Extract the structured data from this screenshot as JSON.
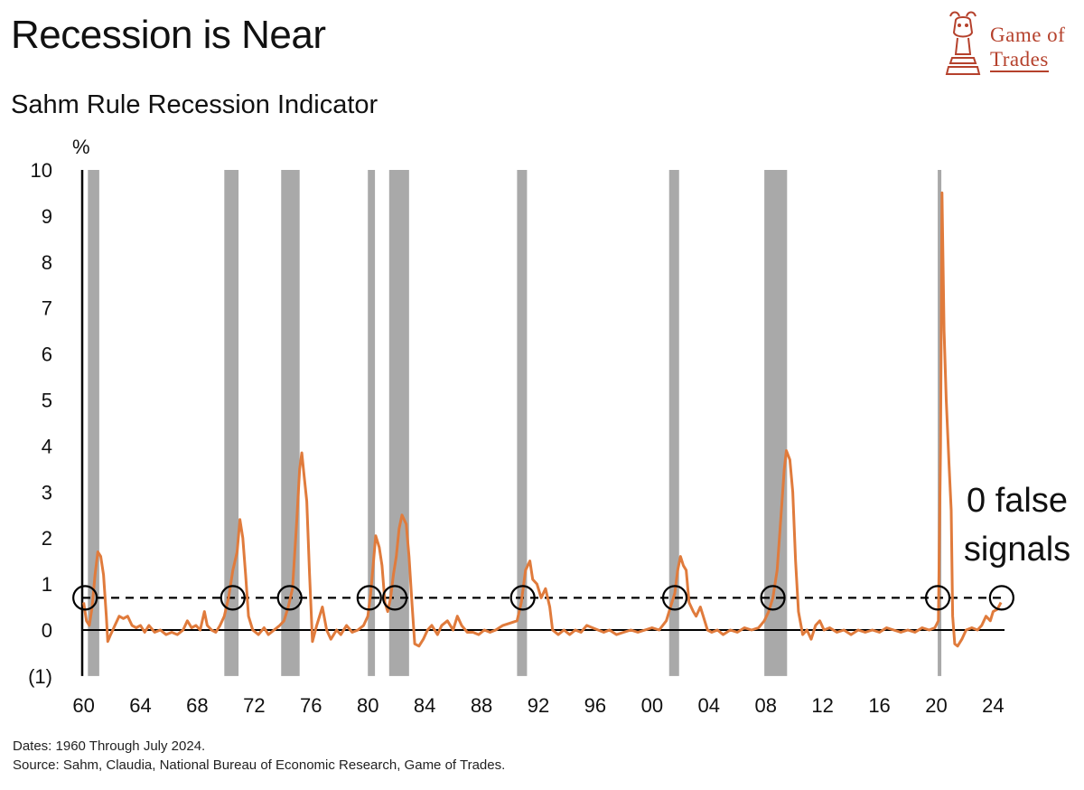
{
  "header": {
    "title": "Recession is Near",
    "subtitle": "Sahm Rule Recession Indicator"
  },
  "logo": {
    "line1": "Game of",
    "line2": "Trades",
    "color": "#b5412c"
  },
  "footnote": {
    "dates": "Dates: 1960 Through July 2024.",
    "source": "Source: Sahm, Claudia, National Bureau of Economic Research, Game of Trades."
  },
  "chart_data": {
    "type": "line",
    "title": "Sahm Rule Recession Indicator",
    "ylabel": "%",
    "ylim": [
      -1,
      10
    ],
    "xlim": [
      1959.9,
      2024.8
    ],
    "yticks": [
      {
        "value": 10,
        "label": "10"
      },
      {
        "value": 9,
        "label": "9"
      },
      {
        "value": 8,
        "label": "8"
      },
      {
        "value": 7,
        "label": "7"
      },
      {
        "value": 6,
        "label": "6"
      },
      {
        "value": 5,
        "label": "5"
      },
      {
        "value": 4,
        "label": "4"
      },
      {
        "value": 3,
        "label": "3"
      },
      {
        "value": 2,
        "label": "2"
      },
      {
        "value": 1,
        "label": "1"
      },
      {
        "value": 0,
        "label": "0"
      },
      {
        "value": -1,
        "label": "(1)"
      }
    ],
    "xticks": [
      {
        "value": 1960,
        "label": "60"
      },
      {
        "value": 1964,
        "label": "64"
      },
      {
        "value": 1968,
        "label": "68"
      },
      {
        "value": 1972,
        "label": "72"
      },
      {
        "value": 1976,
        "label": "76"
      },
      {
        "value": 1980,
        "label": "80"
      },
      {
        "value": 1984,
        "label": "84"
      },
      {
        "value": 1988,
        "label": "88"
      },
      {
        "value": 1992,
        "label": "92"
      },
      {
        "value": 1996,
        "label": "96"
      },
      {
        "value": 2000,
        "label": "00"
      },
      {
        "value": 2004,
        "label": "04"
      },
      {
        "value": 2008,
        "label": "08"
      },
      {
        "value": 2012,
        "label": "12"
      },
      {
        "value": 2016,
        "label": "16"
      },
      {
        "value": 2020,
        "label": "20"
      },
      {
        "value": 2024,
        "label": "24"
      }
    ],
    "threshold": 0.7,
    "recessions": [
      [
        1960.3,
        1961.1
      ],
      [
        1969.9,
        1970.9
      ],
      [
        1973.9,
        1975.2
      ],
      [
        1980.0,
        1980.5
      ],
      [
        1981.5,
        1982.9
      ],
      [
        1990.5,
        1991.2
      ],
      [
        2001.2,
        2001.9
      ],
      [
        2007.9,
        2009.5
      ],
      [
        2020.1,
        2020.3
      ]
    ],
    "signals": [
      1960.1,
      1970.5,
      1974.5,
      1980.1,
      1981.9,
      1990.9,
      2001.6,
      2008.5,
      2020.1,
      2024.6
    ],
    "annotation": {
      "line1": "0 false",
      "line2": "signals"
    },
    "series": [
      {
        "name": "Sahm Rule Recession Indicator",
        "color": "#e07b3c",
        "points": [
          [
            1960.0,
            0.6
          ],
          [
            1960.2,
            0.2
          ],
          [
            1960.4,
            0.1
          ],
          [
            1960.6,
            0.5
          ],
          [
            1960.8,
            1.2
          ],
          [
            1961.0,
            1.7
          ],
          [
            1961.2,
            1.6
          ],
          [
            1961.4,
            1.2
          ],
          [
            1961.6,
            0.3
          ],
          [
            1961.7,
            -0.25
          ],
          [
            1961.9,
            -0.1
          ],
          [
            1962.2,
            0.1
          ],
          [
            1962.5,
            0.3
          ],
          [
            1962.8,
            0.25
          ],
          [
            1963.1,
            0.3
          ],
          [
            1963.4,
            0.1
          ],
          [
            1963.7,
            0.05
          ],
          [
            1964.0,
            0.1
          ],
          [
            1964.3,
            -0.05
          ],
          [
            1964.6,
            0.1
          ],
          [
            1965.0,
            -0.05
          ],
          [
            1965.4,
            0.0
          ],
          [
            1965.8,
            -0.1
          ],
          [
            1966.2,
            -0.05
          ],
          [
            1966.6,
            -0.1
          ],
          [
            1967.0,
            0.0
          ],
          [
            1967.3,
            0.2
          ],
          [
            1967.6,
            0.05
          ],
          [
            1967.9,
            0.1
          ],
          [
            1968.2,
            0.0
          ],
          [
            1968.5,
            0.4
          ],
          [
            1968.7,
            0.1
          ],
          [
            1969.0,
            0.0
          ],
          [
            1969.3,
            -0.05
          ],
          [
            1969.6,
            0.1
          ],
          [
            1969.9,
            0.3
          ],
          [
            1970.2,
            0.7
          ],
          [
            1970.5,
            1.3
          ],
          [
            1970.8,
            1.7
          ],
          [
            1971.0,
            2.4
          ],
          [
            1971.2,
            2.0
          ],
          [
            1971.4,
            1.2
          ],
          [
            1971.6,
            0.3
          ],
          [
            1971.9,
            0.0
          ],
          [
            1972.3,
            -0.1
          ],
          [
            1972.7,
            0.05
          ],
          [
            1973.0,
            -0.1
          ],
          [
            1973.4,
            0.0
          ],
          [
            1973.8,
            0.1
          ],
          [
            1974.1,
            0.2
          ],
          [
            1974.4,
            0.5
          ],
          [
            1974.7,
            0.9
          ],
          [
            1975.0,
            2.4
          ],
          [
            1975.2,
            3.5
          ],
          [
            1975.35,
            3.85
          ],
          [
            1975.5,
            3.4
          ],
          [
            1975.7,
            2.8
          ],
          [
            1975.9,
            1.2
          ],
          [
            1976.1,
            -0.25
          ],
          [
            1976.4,
            0.1
          ],
          [
            1976.8,
            0.5
          ],
          [
            1977.1,
            0.0
          ],
          [
            1977.4,
            -0.2
          ],
          [
            1977.8,
            0.0
          ],
          [
            1978.1,
            -0.1
          ],
          [
            1978.5,
            0.1
          ],
          [
            1978.9,
            -0.05
          ],
          [
            1979.3,
            0.0
          ],
          [
            1979.7,
            0.1
          ],
          [
            1980.0,
            0.3
          ],
          [
            1980.2,
            0.8
          ],
          [
            1980.4,
            1.5
          ],
          [
            1980.55,
            2.05
          ],
          [
            1980.8,
            1.8
          ],
          [
            1981.0,
            1.4
          ],
          [
            1981.2,
            0.6
          ],
          [
            1981.4,
            0.4
          ],
          [
            1981.6,
            0.7
          ],
          [
            1981.8,
            1.2
          ],
          [
            1982.0,
            1.6
          ],
          [
            1982.2,
            2.2
          ],
          [
            1982.4,
            2.5
          ],
          [
            1982.7,
            2.3
          ],
          [
            1982.9,
            1.6
          ],
          [
            1983.1,
            0.6
          ],
          [
            1983.3,
            -0.3
          ],
          [
            1983.6,
            -0.35
          ],
          [
            1983.9,
            -0.2
          ],
          [
            1984.2,
            0.0
          ],
          [
            1984.5,
            0.1
          ],
          [
            1984.9,
            -0.1
          ],
          [
            1985.2,
            0.1
          ],
          [
            1985.6,
            0.2
          ],
          [
            1986.0,
            0.0
          ],
          [
            1986.3,
            0.3
          ],
          [
            1986.6,
            0.1
          ],
          [
            1987.0,
            -0.05
          ],
          [
            1987.4,
            -0.05
          ],
          [
            1987.8,
            -0.1
          ],
          [
            1988.2,
            0.0
          ],
          [
            1988.6,
            -0.05
          ],
          [
            1989.0,
            0.0
          ],
          [
            1989.5,
            0.1
          ],
          [
            1990.0,
            0.15
          ],
          [
            1990.5,
            0.2
          ],
          [
            1990.8,
            0.6
          ],
          [
            1991.1,
            1.3
          ],
          [
            1991.4,
            1.5
          ],
          [
            1991.6,
            1.1
          ],
          [
            1991.9,
            1.0
          ],
          [
            1992.2,
            0.7
          ],
          [
            1992.5,
            0.9
          ],
          [
            1992.8,
            0.5
          ],
          [
            1993.0,
            0.0
          ],
          [
            1993.4,
            -0.1
          ],
          [
            1993.8,
            0.0
          ],
          [
            1994.2,
            -0.1
          ],
          [
            1994.6,
            0.0
          ],
          [
            1995.0,
            -0.05
          ],
          [
            1995.4,
            0.1
          ],
          [
            1995.8,
            0.05
          ],
          [
            1996.2,
            0.0
          ],
          [
            1996.6,
            -0.05
          ],
          [
            1997.0,
            0.0
          ],
          [
            1997.5,
            -0.1
          ],
          [
            1998.0,
            -0.05
          ],
          [
            1998.5,
            0.0
          ],
          [
            1999.0,
            -0.05
          ],
          [
            1999.5,
            0.0
          ],
          [
            2000.0,
            0.05
          ],
          [
            2000.5,
            0.0
          ],
          [
            2001.0,
            0.2
          ],
          [
            2001.3,
            0.5
          ],
          [
            2001.6,
            0.8
          ],
          [
            2001.8,
            1.3
          ],
          [
            2002.0,
            1.6
          ],
          [
            2002.2,
            1.4
          ],
          [
            2002.4,
            1.3
          ],
          [
            2002.6,
            0.6
          ],
          [
            2002.9,
            0.4
          ],
          [
            2003.1,
            0.3
          ],
          [
            2003.4,
            0.5
          ],
          [
            2003.6,
            0.3
          ],
          [
            2003.9,
            0.0
          ],
          [
            2004.2,
            -0.05
          ],
          [
            2004.6,
            0.0
          ],
          [
            2005.0,
            -0.1
          ],
          [
            2005.5,
            0.0
          ],
          [
            2006.0,
            -0.05
          ],
          [
            2006.5,
            0.05
          ],
          [
            2007.0,
            0.0
          ],
          [
            2007.5,
            0.05
          ],
          [
            2007.9,
            0.2
          ],
          [
            2008.2,
            0.4
          ],
          [
            2008.5,
            0.7
          ],
          [
            2008.8,
            1.3
          ],
          [
            2009.1,
            2.6
          ],
          [
            2009.3,
            3.5
          ],
          [
            2009.45,
            3.9
          ],
          [
            2009.7,
            3.7
          ],
          [
            2009.9,
            3.0
          ],
          [
            2010.1,
            1.5
          ],
          [
            2010.3,
            0.4
          ],
          [
            2010.6,
            -0.1
          ],
          [
            2010.9,
            0.0
          ],
          [
            2011.2,
            -0.2
          ],
          [
            2011.5,
            0.1
          ],
          [
            2011.8,
            0.2
          ],
          [
            2012.1,
            0.0
          ],
          [
            2012.5,
            0.05
          ],
          [
            2013.0,
            -0.05
          ],
          [
            2013.5,
            0.0
          ],
          [
            2014.0,
            -0.1
          ],
          [
            2014.5,
            0.0
          ],
          [
            2015.0,
            -0.05
          ],
          [
            2015.5,
            0.0
          ],
          [
            2016.0,
            -0.05
          ],
          [
            2016.5,
            0.05
          ],
          [
            2017.0,
            0.0
          ],
          [
            2017.5,
            -0.05
          ],
          [
            2018.0,
            0.0
          ],
          [
            2018.5,
            -0.05
          ],
          [
            2019.0,
            0.05
          ],
          [
            2019.5,
            0.0
          ],
          [
            2019.9,
            0.05
          ],
          [
            2020.15,
            0.2
          ],
          [
            2020.3,
            4.0
          ],
          [
            2020.4,
            9.5
          ],
          [
            2020.55,
            6.5
          ],
          [
            2020.7,
            5.0
          ],
          [
            2020.9,
            3.6
          ],
          [
            2021.05,
            2.6
          ],
          [
            2021.15,
            0.3
          ],
          [
            2021.3,
            -0.3
          ],
          [
            2021.5,
            -0.35
          ],
          [
            2021.8,
            -0.2
          ],
          [
            2022.1,
            0.0
          ],
          [
            2022.5,
            0.05
          ],
          [
            2022.9,
            0.0
          ],
          [
            2023.2,
            0.1
          ],
          [
            2023.5,
            0.3
          ],
          [
            2023.8,
            0.2
          ],
          [
            2024.0,
            0.4
          ],
          [
            2024.3,
            0.45
          ],
          [
            2024.55,
            0.6
          ]
        ]
      }
    ]
  }
}
